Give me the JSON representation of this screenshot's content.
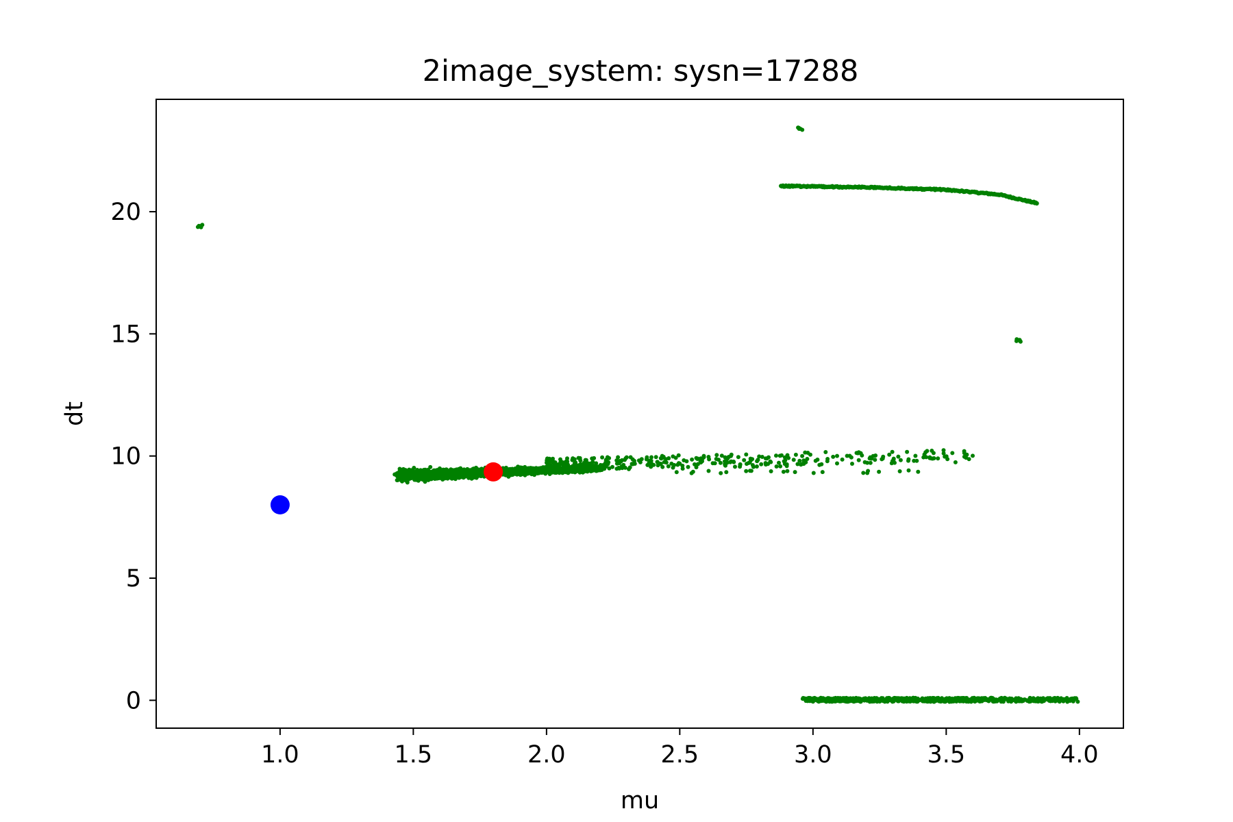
{
  "chart_data": {
    "type": "scatter",
    "title": "2image_system: sysn=17288",
    "xlabel": "mu",
    "ylabel": "dt",
    "xlim": [
      0.535,
      4.165
    ],
    "ylim": [
      -1.14,
      24.6
    ],
    "xticks": [
      1.0,
      1.5,
      2.0,
      2.5,
      3.0,
      3.5,
      4.0
    ],
    "xtick_labels": [
      "1.0",
      "1.5",
      "2.0",
      "2.5",
      "3.0",
      "3.5",
      "4.0"
    ],
    "yticks": [
      0,
      5,
      10,
      15,
      20
    ],
    "ytick_labels": [
      "0",
      "5",
      "10",
      "15",
      "20"
    ],
    "grid": false,
    "legend": "none",
    "series": [
      {
        "color": "#008000",
        "marker": "small-dot",
        "components": [
          {
            "kind": "cluster",
            "x": 0.7,
            "y": 19.4,
            "points": 6
          },
          {
            "kind": "cluster",
            "x": 2.95,
            "y": 23.4,
            "points": 6
          },
          {
            "kind": "cluster",
            "x": 3.77,
            "y": 14.75,
            "points": 6
          },
          {
            "kind": "curve",
            "x_start": 2.88,
            "x_end": 3.84,
            "y_points": [
              [
                2.88,
                21.05
              ],
              [
                3.2,
                21.0
              ],
              [
                3.5,
                20.9
              ],
              [
                3.7,
                20.7
              ],
              [
                3.84,
                20.35
              ]
            ]
          },
          {
            "kind": "band",
            "x_start": 2.96,
            "x_end": 4.0,
            "y": 0.02
          },
          {
            "kind": "dense-cloud",
            "x_start": 1.45,
            "x_end": 2.2,
            "y_at_start": 9.2,
            "y_at_end": 9.5
          },
          {
            "kind": "sparse-tail",
            "x_start": 2.0,
            "x_end": 3.6,
            "y_at_start": 9.6,
            "y_at_end": 10.0
          },
          {
            "kind": "sparse-below",
            "x_start": 2.4,
            "x_end": 3.4,
            "y": 9.35
          }
        ]
      },
      {
        "color": "#0000ff",
        "marker": "large-dot",
        "points": [
          {
            "x": 1.0,
            "y": 8.0
          }
        ]
      },
      {
        "color": "#ff0000",
        "marker": "large-dot",
        "points": [
          {
            "x": 1.8,
            "y": 9.35
          }
        ]
      }
    ]
  }
}
